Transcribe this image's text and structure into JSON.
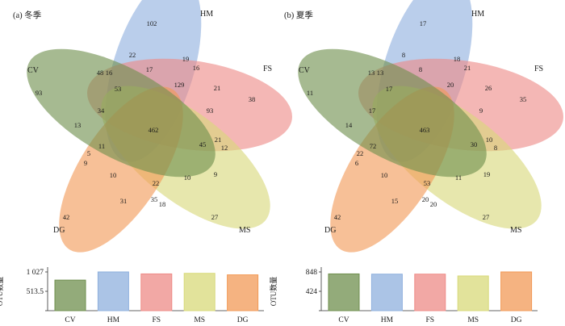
{
  "colors": {
    "CV": "#6f8f4e",
    "HM": "#8fb0de",
    "FS": "#ee8b87",
    "MS": "#d8d97a",
    "DG": "#f29a57"
  },
  "chart_data": [
    {
      "type": "venn",
      "title": "(a) 冬季",
      "sets": [
        "HM",
        "FS",
        "MS",
        "DG",
        "CV"
      ],
      "unique": {
        "CV": 93,
        "HM": 102,
        "FS": 38,
        "MS": 27,
        "DG": 42
      },
      "core": 462,
      "region_values": [
        22,
        17,
        19,
        16,
        48,
        16,
        53,
        129,
        21,
        34,
        13,
        93,
        11,
        21,
        45,
        12,
        5,
        9,
        10,
        10,
        9,
        22,
        31,
        35,
        18
      ]
    },
    {
      "type": "venn",
      "title": "(b) 夏季",
      "sets": [
        "HM",
        "FS",
        "MS",
        "DG",
        "CV"
      ],
      "unique": {
        "CV": 11,
        "HM": 17,
        "FS": 35,
        "MS": 27,
        "DG": 42
      },
      "core": 463,
      "region_values": [
        8,
        8,
        18,
        21,
        13,
        13,
        17,
        20,
        26,
        17,
        14,
        9,
        72,
        10,
        30,
        8,
        22,
        6,
        10,
        11,
        19,
        53,
        15,
        20,
        20
      ]
    },
    {
      "type": "bar",
      "categories": [
        "CV",
        "HM",
        "FS",
        "MS",
        "DG"
      ],
      "values": [
        810,
        1027,
        975,
        990,
        950
      ],
      "ylabel": "OTU数量",
      "yticks": [
        "1 027",
        "513.5",
        "0"
      ],
      "ylim": [
        0,
        1027
      ]
    },
    {
      "type": "bar",
      "categories": [
        "CV",
        "HM",
        "FS",
        "MS",
        "DG"
      ],
      "values": [
        805,
        800,
        800,
        760,
        848
      ],
      "ylabel": "OTU数量",
      "yticks": [
        "848",
        "424",
        "0"
      ],
      "ylim": [
        0,
        848
      ]
    }
  ]
}
